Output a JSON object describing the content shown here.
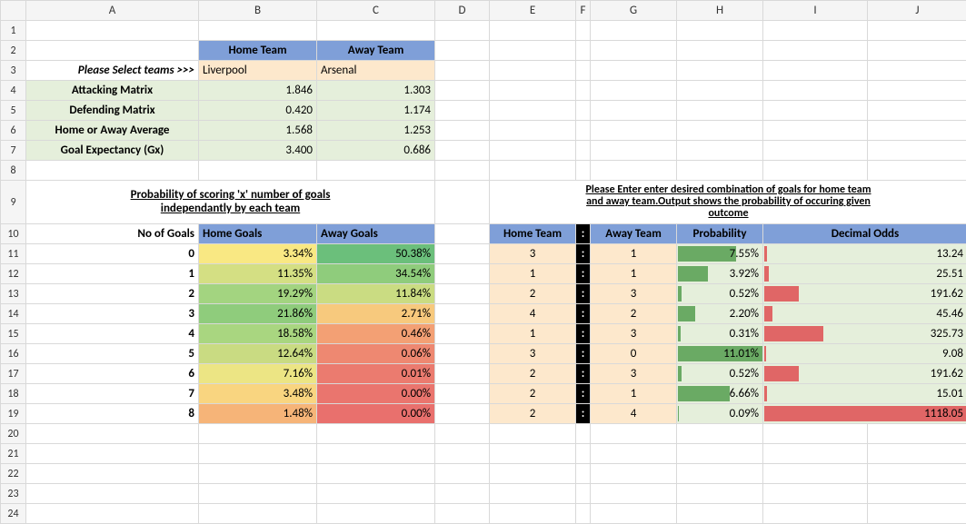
{
  "columns": [
    "A",
    "B",
    "C",
    "D",
    "E",
    "F",
    "G",
    "H",
    "I",
    "J"
  ],
  "row_count": 24,
  "colors": {
    "cornflower": "#7f9fd8",
    "palegreen": "#e5efdb",
    "wheat": "#fde8cc",
    "black": "#000000",
    "white": "#ffffff"
  },
  "team_header": {
    "home": "Home Team",
    "away": "Away Team",
    "bg": "#7f9fd8"
  },
  "select_prompt": "Please Select teams >>>",
  "teams": {
    "home": "Liverpool",
    "away": "Arsenal",
    "bg": "#fde8cc"
  },
  "metrics": [
    {
      "label": "Attacking Matrix",
      "home": "1.846",
      "away": "1.303"
    },
    {
      "label": "Defending Matrix",
      "home": "0.420",
      "away": "1.174"
    },
    {
      "label": "Home or Away Average",
      "home": "1.568",
      "away": "1.253"
    },
    {
      "label": "Goal Expectancy (Gx)",
      "home": "3.400",
      "away": "0.686"
    }
  ],
  "metrics_bg": "#e5efdb",
  "prob_title_line1": "Probability of scoring 'x' number of goals",
  "prob_title_line2": "independantly by each team",
  "prob_headers": {
    "goals": "No of Goals",
    "home": "Home Goals",
    "away": "Away Goals",
    "bg": "#7f9fd8"
  },
  "prob_rows": [
    {
      "g": "0",
      "home": "3.34%",
      "away": "50.38%",
      "hc": "#f9e883",
      "ac": "#6bbf7b"
    },
    {
      "g": "1",
      "home": "11.35%",
      "away": "34.54%",
      "hc": "#d4df83",
      "ac": "#8fcc7c"
    },
    {
      "g": "2",
      "home": "19.29%",
      "away": "11.84%",
      "hc": "#a3d480",
      "ac": "#cadc82"
    },
    {
      "g": "3",
      "home": "21.86%",
      "away": "2.71%",
      "hc": "#8fcc7c",
      "ac": "#f7c97d"
    },
    {
      "g": "4",
      "home": "18.58%",
      "away": "0.46%",
      "hc": "#a9d680",
      "ac": "#f3a074"
    },
    {
      "g": "5",
      "home": "12.64%",
      "away": "0.06%",
      "hc": "#c9db82",
      "ac": "#ee8871"
    },
    {
      "g": "6",
      "home": "7.16%",
      "away": "0.01%",
      "hc": "#ece584",
      "ac": "#eb7b6f"
    },
    {
      "g": "7",
      "home": "3.48%",
      "away": "0.00%",
      "hc": "#f9d580",
      "ac": "#ea756e"
    },
    {
      "g": "8",
      "home": "1.48%",
      "away": "0.00%",
      "hc": "#f6b478",
      "ac": "#e9706d"
    }
  ],
  "combo_title_line1": "Please Enter enter desired combination of goals for home team",
  "combo_title_line2": "and away team.Output shows the probability of occuring given",
  "combo_title_line3": "outcome",
  "combo_headers": {
    "home": "Home Team",
    "away": "Away Team",
    "prob": "Probability",
    "odds": "Decimal Odds",
    "colon": ":",
    "bg": "#7f9fd8"
  },
  "combo_rows": [
    {
      "h": "3",
      "a": "1",
      "p": "7.55%",
      "o": "13.24",
      "pbar": 0.685,
      "obar": 0.012
    },
    {
      "h": "1",
      "a": "1",
      "p": "3.92%",
      "o": "25.51",
      "pbar": 0.356,
      "obar": 0.023
    },
    {
      "h": "2",
      "a": "3",
      "p": "0.52%",
      "o": "191.62",
      "pbar": 0.047,
      "obar": 0.171
    },
    {
      "h": "4",
      "a": "2",
      "p": "2.20%",
      "o": "45.46",
      "pbar": 0.2,
      "obar": 0.041
    },
    {
      "h": "1",
      "a": "3",
      "p": "0.31%",
      "o": "325.73",
      "pbar": 0.028,
      "obar": 0.291
    },
    {
      "h": "3",
      "a": "0",
      "p": "11.01%",
      "o": "9.08",
      "pbar": 1.0,
      "obar": 0.008
    },
    {
      "h": "2",
      "a": "3",
      "p": "0.52%",
      "o": "191.62",
      "pbar": 0.047,
      "obar": 0.171
    },
    {
      "h": "2",
      "a": "1",
      "p": "6.66%",
      "o": "15.01",
      "pbar": 0.605,
      "obar": 0.013
    },
    {
      "h": "2",
      "a": "4",
      "p": "0.09%",
      "o": "1118.05",
      "pbar": 0.008,
      "obar": 1.0
    }
  ],
  "combo_cell_bg": "#fde8cc",
  "prob_bar_bg": "#e5efdb",
  "odds_bar_bg": "#e5efdb",
  "bar_green": "#6aaa64",
  "bar_red": "#e06666"
}
